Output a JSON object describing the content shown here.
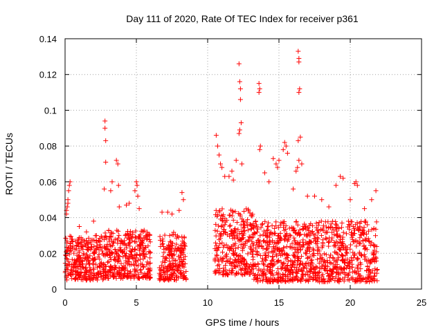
{
  "chart_data": {
    "type": "scatter",
    "title": "Day 111 of 2020, Rate Of TEC Index for receiver p361",
    "xlabel": "GPS time / hours",
    "ylabel": "ROTI / TECUs",
    "xlim": [
      0,
      25
    ],
    "ylim": [
      0,
      0.14
    ],
    "xticks": [
      "0",
      "5",
      "10",
      "15",
      "20",
      "25"
    ],
    "yticks": [
      "0",
      "0.02",
      "0.04",
      "0.06",
      "0.08",
      "0.1",
      "0.12",
      "0.14"
    ],
    "grid": true,
    "marker": "+",
    "color": "#ff0000",
    "segments": [
      {
        "x": [
          0.0,
          2.7
        ],
        "base_low": 0.005,
        "base_high": 0.03
      },
      {
        "x": [
          2.7,
          6.0
        ],
        "base_low": 0.006,
        "base_high": 0.033
      },
      {
        "x": [
          6.6,
          8.5
        ],
        "base_low": 0.005,
        "base_high": 0.032
      },
      {
        "x": [
          10.5,
          13.2
        ],
        "base_low": 0.008,
        "base_high": 0.045
      },
      {
        "x": [
          13.2,
          21.9
        ],
        "base_low": 0.004,
        "base_high": 0.038
      }
    ],
    "x": [
      0.1,
      0.15,
      0.2,
      0.25,
      0.3,
      0.35,
      0.1,
      0.2,
      1.0,
      1.5,
      2.0,
      2.2,
      2.8,
      2.8,
      2.85,
      2.85,
      2.75,
      3.2,
      3.3,
      3.6,
      3.7,
      3.75,
      3.8,
      4.3,
      4.5,
      4.9,
      5.0,
      5.05,
      5.1,
      5.2,
      6.8,
      7.2,
      7.5,
      8.0,
      8.2,
      8.3,
      10.6,
      10.7,
      10.8,
      10.9,
      11.0,
      11.2,
      11.5,
      11.7,
      11.8,
      12.0,
      12.2,
      12.25,
      12.3,
      12.3,
      12.35,
      12.25,
      12.2,
      12.4,
      13.6,
      13.65,
      13.6,
      13.7,
      13.65,
      14.0,
      14.3,
      14.6,
      14.8,
      14.9,
      15.0,
      15.3,
      15.4,
      15.5,
      15.6,
      16.0,
      16.2,
      16.3,
      16.35,
      16.4,
      16.4,
      16.45,
      16.4,
      16.5,
      16.35,
      16.4,
      16.6,
      17.0,
      17.5,
      18.0,
      18.5,
      19.0,
      19.3,
      19.5,
      20.0,
      20.3,
      20.4,
      20.5,
      21.0,
      21.5,
      21.8
    ],
    "y": [
      0.042,
      0.046,
      0.05,
      0.055,
      0.058,
      0.06,
      0.044,
      0.048,
      0.035,
      0.032,
      0.038,
      0.03,
      0.094,
      0.09,
      0.083,
      0.071,
      0.056,
      0.055,
      0.06,
      0.072,
      0.07,
      0.058,
      0.046,
      0.047,
      0.048,
      0.055,
      0.06,
      0.058,
      0.052,
      0.045,
      0.043,
      0.043,
      0.042,
      0.044,
      0.054,
      0.05,
      0.086,
      0.08,
      0.075,
      0.07,
      0.068,
      0.063,
      0.063,
      0.066,
      0.061,
      0.072,
      0.126,
      0.116,
      0.112,
      0.106,
      0.093,
      0.089,
      0.087,
      0.07,
      0.115,
      0.112,
      0.11,
      0.08,
      0.078,
      0.065,
      0.06,
      0.073,
      0.07,
      0.068,
      0.072,
      0.078,
      0.082,
      0.08,
      0.076,
      0.056,
      0.066,
      0.068,
      0.133,
      0.129,
      0.127,
      0.112,
      0.11,
      0.085,
      0.083,
      0.072,
      0.07,
      0.052,
      0.052,
      0.05,
      0.046,
      0.058,
      0.063,
      0.062,
      0.05,
      0.059,
      0.06,
      0.058,
      0.045,
      0.05,
      0.055
    ]
  }
}
